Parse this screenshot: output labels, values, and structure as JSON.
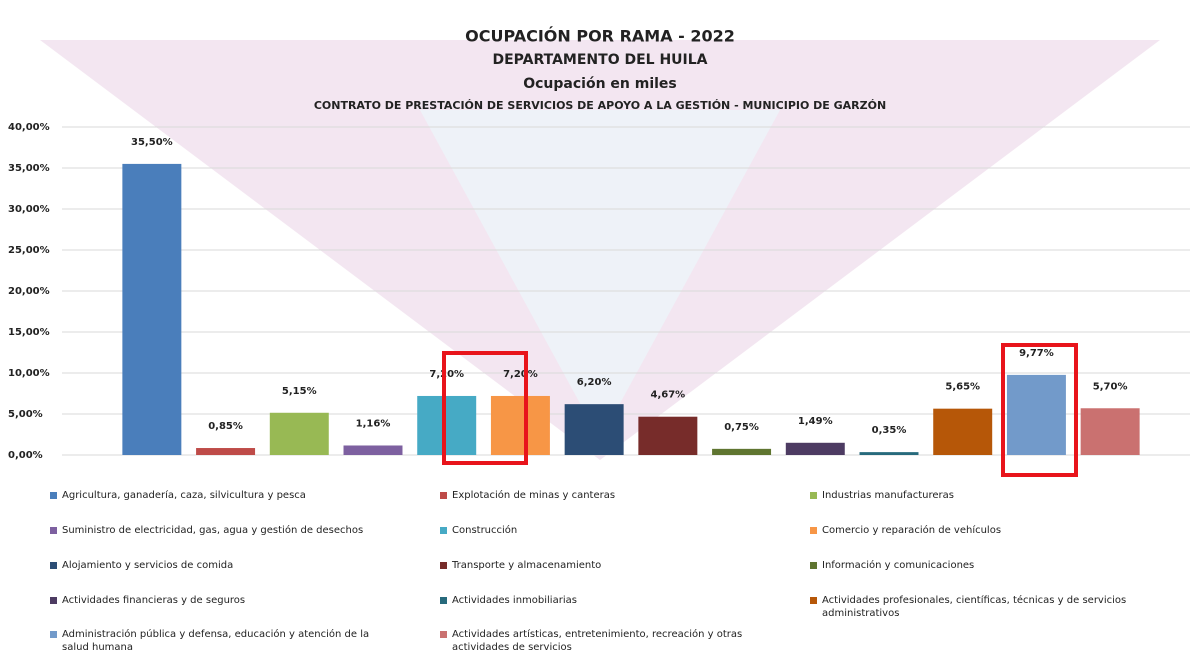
{
  "chart_data": {
    "type": "bar",
    "title": "OCUPACIÓN POR RAMA - 2022",
    "subtitle": "DEPARTAMENTO DEL HUILA",
    "annotations": [
      "Ocupación en miles",
      "CONTRATO DE PRESTACIÓN DE SERVICIOS DE APOYO A LA GESTIÓN - MUNICIPIO DE GARZÓN"
    ],
    "categories": [
      "Agricultura, ganadería, caza, silvicultura y pesca",
      "Explotación de minas y canteras",
      "Industrias manufactureras",
      "Suministro de electricidad, gas, agua y gestión de desechos",
      "Construcción",
      "Comercio y reparación de vehículos",
      "Alojamiento y servicios de comida",
      "Transporte y almacenamiento",
      "Información y comunicaciones",
      "Actividades financieras y de seguros",
      "Actividades inmobiliarias",
      "Actividades profesionales, científicas, técnicas y de servicios administrativos",
      "Administración pública y defensa, educación y atención de la salud humana",
      "Actividades artísticas, entretenimiento, recreación y otras actividades de servicios"
    ],
    "values": [
      35.5,
      0.85,
      5.15,
      1.16,
      7.2,
      7.2,
      6.2,
      4.67,
      0.75,
      1.49,
      0.35,
      5.65,
      9.77,
      5.7
    ],
    "value_labels": [
      "35,50%",
      "0,85%",
      "5,15%",
      "1,16%",
      "7,20%",
      "7,20%",
      "6,20%",
      "4,67%",
      "0,75%",
      "1,49%",
      "0,35%",
      "5,65%",
      "9,77%",
      "5,70%"
    ],
    "colors": [
      "#4a7ebb",
      "#be4b48",
      "#98b954",
      "#7d60a0",
      "#46aac5",
      "#f79646",
      "#2c4d75",
      "#772c2a",
      "#5f7530",
      "#4d3b62",
      "#276a7c",
      "#b65708",
      "#729aca",
      "#ca7170"
    ],
    "ylim": [
      0,
      40
    ],
    "yticks": [
      {
        "value": 0,
        "label": "0,00%"
      },
      {
        "value": 5,
        "label": "5,00%"
      },
      {
        "value": 10,
        "label": "10,00%"
      },
      {
        "value": 15,
        "label": "15,00%"
      },
      {
        "value": 20,
        "label": "20,00%"
      },
      {
        "value": 25,
        "label": "25,00%"
      },
      {
        "value": 30,
        "label": "30,00%"
      },
      {
        "value": 35,
        "label": "35,00%"
      },
      {
        "value": 40,
        "label": "40,00%"
      }
    ],
    "grid": true,
    "legend": "bottom"
  }
}
